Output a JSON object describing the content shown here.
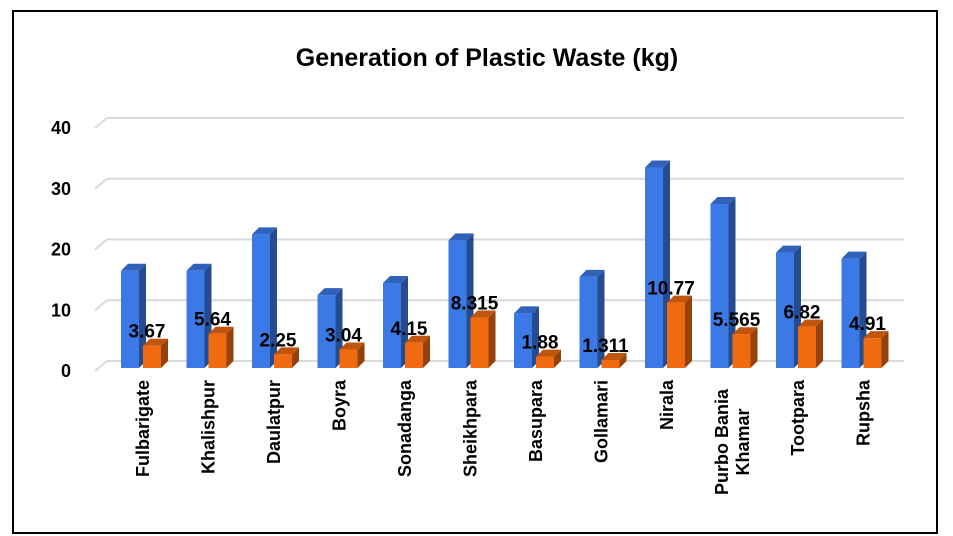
{
  "chart_data": {
    "type": "bar",
    "title": "Generation of Plastic Waste (kg)",
    "categories": [
      "Fulbarigate",
      "Khalishpur",
      "Daulatpur",
      "Boyra",
      "Sonadanga",
      "Sheikhpara",
      "Basupara",
      "Gollamari",
      "Nirala",
      "Purbo Bania Khamar",
      "Tootpara",
      "Rupsha"
    ],
    "category_lines": [
      [
        "Fulbarigate"
      ],
      [
        "Khalishpur"
      ],
      [
        "Daulatpur"
      ],
      [
        "Boyra"
      ],
      [
        "Sonadanga"
      ],
      [
        "Sheikhpara"
      ],
      [
        "Basupara"
      ],
      [
        "Gollamari"
      ],
      [
        "Nirala"
      ],
      [
        "Purbo Bania",
        "Khamar"
      ],
      [
        "Tootpara"
      ],
      [
        "Rupsha"
      ]
    ],
    "series": [
      {
        "values": [
          16,
          16,
          22,
          12,
          14,
          21,
          9,
          15,
          33,
          27,
          19,
          18
        ],
        "color": "#3b7ae6",
        "labels_shown": false
      },
      {
        "values": [
          3.67,
          5.64,
          2.25,
          3.04,
          4.15,
          8.315,
          1.88,
          1.311,
          10.77,
          5.565,
          6.82,
          4.91
        ],
        "color": "#f06a10",
        "labels_shown": true,
        "labels": [
          "3.67",
          "5.64",
          "2.25",
          "3.04",
          "4.15",
          "8.315",
          "1.88",
          "1.311",
          "10.77",
          "5.565",
          "6.82",
          "4.91"
        ]
      }
    ],
    "ylim": [
      0,
      40
    ],
    "yticks": [
      0,
      10,
      20,
      30,
      40
    ],
    "grid": true,
    "legend": "none",
    "style": "3d-column"
  }
}
